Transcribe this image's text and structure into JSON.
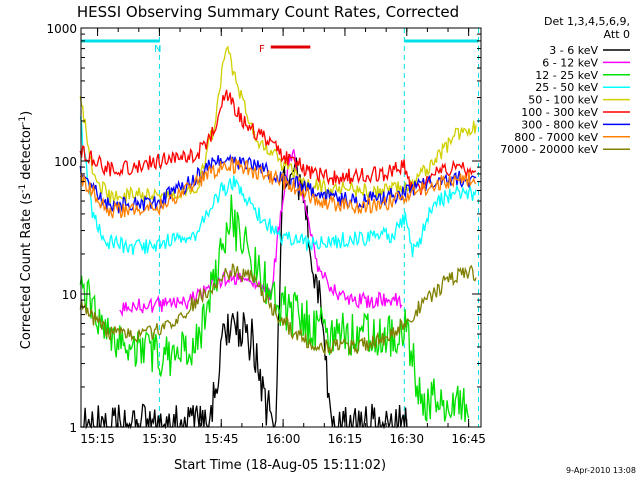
{
  "chart_data": {
    "type": "line",
    "title": "HESSI Observing Summary Count Rates, Corrected",
    "xlabel": "Start Time (18-Aug-05 15:11:02)",
    "ylabel_main": "Corrected Count Rate (s",
    "ylabel_sup1": "-1",
    "ylabel_mid": " detector",
    "ylabel_sup2": "-1",
    "ylabel_end": ")",
    "yscale": "log",
    "ylim": [
      1,
      1000
    ],
    "xlim_minutes": [
      15.183,
      16.8
    ],
    "x_units": "hours (decimal UT)",
    "xticks": [
      {
        "v": 15.25,
        "label": "15:15"
      },
      {
        "v": 15.5,
        "label": "15:30"
      },
      {
        "v": 15.75,
        "label": "15:45"
      },
      {
        "v": 16.0,
        "label": "16:00"
      },
      {
        "v": 16.25,
        "label": "16:15"
      },
      {
        "v": 16.5,
        "label": "16:30"
      },
      {
        "v": 16.75,
        "label": "16:45"
      }
    ],
    "yticks": [
      {
        "v": 1,
        "label": "1"
      },
      {
        "v": 10,
        "label": "10"
      },
      {
        "v": 100,
        "label": "100"
      },
      {
        "v": 1000,
        "label": "1000"
      }
    ],
    "legend": {
      "header1": "Det 1,3,4,5,6,9,",
      "header2": "Att 0",
      "placement": "right"
    },
    "footer_date": "9-Apr-2010 13:08",
    "annotations": [
      {
        "label": "N",
        "kind": "night",
        "start": 15.183,
        "end": 15.5,
        "color": "#00e0e8"
      },
      {
        "label": "N",
        "kind": "night",
        "start": 16.49,
        "end": 16.79,
        "color": "#00e0e8"
      },
      {
        "label": "F",
        "kind": "flare",
        "start": 15.95,
        "end": 16.11,
        "color": "#e00000"
      }
    ],
    "vlines": [
      15.5,
      16.49,
      16.79
    ],
    "series": [
      {
        "name": "3 - 6 keV",
        "color": "#000000",
        "points": [
          [
            15.18,
            1
          ],
          [
            15.7,
            1
          ],
          [
            15.75,
            4
          ],
          [
            15.8,
            5.5
          ],
          [
            15.88,
            4.5
          ],
          [
            15.93,
            1.5
          ],
          [
            15.97,
            1
          ],
          [
            16.0,
            60
          ],
          [
            16.05,
            90
          ],
          [
            16.1,
            30
          ],
          [
            16.15,
            8
          ],
          [
            16.2,
            1
          ],
          [
            16.5,
            1
          ]
        ]
      },
      {
        "name": "6 - 12 keV",
        "color": "#ff00ff",
        "points": [
          [
            15.34,
            8
          ],
          [
            15.6,
            8.5
          ],
          [
            15.75,
            13
          ],
          [
            15.85,
            14
          ],
          [
            15.95,
            9.5
          ],
          [
            16.0,
            55
          ],
          [
            16.04,
            125
          ],
          [
            16.1,
            35
          ],
          [
            16.15,
            14
          ],
          [
            16.25,
            9
          ],
          [
            16.48,
            9
          ]
        ]
      },
      {
        "name": "12 - 25 keV",
        "color": "#00e000",
        "points": [
          [
            15.18,
            14
          ],
          [
            15.26,
            6
          ],
          [
            15.3,
            5
          ],
          [
            15.45,
            3.5
          ],
          [
            15.6,
            3.5
          ],
          [
            15.65,
            4
          ],
          [
            15.75,
            20
          ],
          [
            15.78,
            42
          ],
          [
            15.82,
            28
          ],
          [
            15.88,
            18
          ],
          [
            15.95,
            10
          ],
          [
            16.0,
            8
          ],
          [
            16.1,
            6
          ],
          [
            16.2,
            5
          ],
          [
            16.45,
            5
          ],
          [
            16.5,
            5.5
          ],
          [
            16.53,
            3
          ],
          [
            16.55,
            1.6
          ],
          [
            16.75,
            1.6
          ]
        ]
      },
      {
        "name": "25 - 50 keV",
        "color": "#00ffff",
        "points": [
          [
            15.18,
            200
          ],
          [
            15.23,
            40
          ],
          [
            15.28,
            25
          ],
          [
            15.4,
            22
          ],
          [
            15.5,
            24
          ],
          [
            15.65,
            28
          ],
          [
            15.75,
            60
          ],
          [
            15.8,
            70
          ],
          [
            15.85,
            55
          ],
          [
            15.9,
            40
          ],
          [
            15.98,
            28
          ],
          [
            16.1,
            24
          ],
          [
            16.3,
            26
          ],
          [
            16.45,
            28
          ],
          [
            16.5,
            40
          ],
          [
            16.52,
            20
          ],
          [
            16.55,
            25
          ],
          [
            16.6,
            45
          ],
          [
            16.7,
            60
          ],
          [
            16.78,
            55
          ]
        ]
      },
      {
        "name": "50 - 100 keV",
        "color": "#d0d000",
        "points": [
          [
            15.18,
            300
          ],
          [
            15.24,
            70
          ],
          [
            15.3,
            55
          ],
          [
            15.5,
            55
          ],
          [
            15.65,
            60
          ],
          [
            15.72,
            180
          ],
          [
            15.77,
            700
          ],
          [
            15.82,
            350
          ],
          [
            15.9,
            140
          ],
          [
            16.0,
            95
          ],
          [
            16.1,
            65
          ],
          [
            16.3,
            60
          ],
          [
            16.45,
            60
          ],
          [
            16.5,
            65
          ],
          [
            16.6,
            90
          ],
          [
            16.7,
            160
          ],
          [
            16.78,
            180
          ]
        ]
      },
      {
        "name": "100 - 300 keV",
        "color": "#ff0000",
        "points": [
          [
            15.18,
            120
          ],
          [
            15.3,
            85
          ],
          [
            15.5,
            100
          ],
          [
            15.65,
            110
          ],
          [
            15.72,
            170
          ],
          [
            15.77,
            330
          ],
          [
            15.83,
            210
          ],
          [
            15.9,
            160
          ],
          [
            16.0,
            110
          ],
          [
            16.1,
            85
          ],
          [
            16.2,
            75
          ],
          [
            16.4,
            80
          ],
          [
            16.49,
            95
          ],
          [
            16.52,
            60
          ],
          [
            16.55,
            60
          ],
          [
            16.6,
            80
          ],
          [
            16.7,
            90
          ],
          [
            16.78,
            85
          ]
        ]
      },
      {
        "name": "300 - 800 keV",
        "color": "#0000ff",
        "points": [
          [
            15.18,
            80
          ],
          [
            15.3,
            45
          ],
          [
            15.5,
            50
          ],
          [
            15.6,
            65
          ],
          [
            15.7,
            90
          ],
          [
            15.77,
            105
          ],
          [
            15.85,
            95
          ],
          [
            16.0,
            75
          ],
          [
            16.15,
            55
          ],
          [
            16.3,
            50
          ],
          [
            16.45,
            55
          ],
          [
            16.55,
            65
          ],
          [
            16.65,
            75
          ],
          [
            16.78,
            72
          ]
        ]
      },
      {
        "name": "800 - 7000 keV",
        "color": "#ff8000",
        "points": [
          [
            15.18,
            75
          ],
          [
            15.3,
            42
          ],
          [
            15.5,
            45
          ],
          [
            15.6,
            58
          ],
          [
            15.7,
            80
          ],
          [
            15.77,
            95
          ],
          [
            15.85,
            88
          ],
          [
            16.0,
            70
          ],
          [
            16.15,
            50
          ],
          [
            16.3,
            45
          ],
          [
            16.45,
            50
          ],
          [
            16.55,
            60
          ],
          [
            16.65,
            70
          ],
          [
            16.78,
            75
          ]
        ]
      },
      {
        "name": "7000 - 20000 keV",
        "color": "#808000",
        "points": [
          [
            15.18,
            8
          ],
          [
            15.3,
            5
          ],
          [
            15.45,
            5
          ],
          [
            15.55,
            6
          ],
          [
            15.65,
            9
          ],
          [
            15.75,
            13
          ],
          [
            15.8,
            15
          ],
          [
            15.88,
            13
          ],
          [
            15.95,
            8
          ],
          [
            16.05,
            5
          ],
          [
            16.15,
            4
          ],
          [
            16.3,
            4
          ],
          [
            16.45,
            5
          ],
          [
            16.55,
            8
          ],
          [
            16.65,
            12
          ],
          [
            16.75,
            15
          ],
          [
            16.78,
            14
          ]
        ]
      }
    ]
  }
}
